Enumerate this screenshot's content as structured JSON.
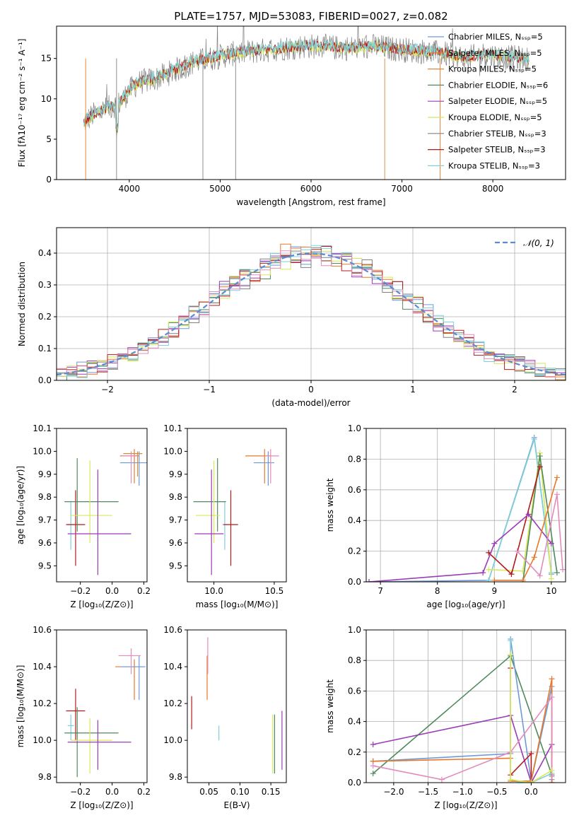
{
  "colors": {
    "chabrier_miles": "#6d9ad6",
    "salpeter_miles": "#e9782a",
    "kroupa_miles": "#d98b3a",
    "chabrier_elodie": "#4f8a5c",
    "salpeter_elodie": "#9b3bb5",
    "kroupa_elodie": "#d8e85a",
    "chabrier_stelib": "#808080",
    "salpeter_stelib": "#b31b1b",
    "kroupa_stelib": "#7fd1d8",
    "pink": "#e38bbd",
    "normal_curve": "#5b8bd1"
  },
  "chart_data": [
    {
      "id": "spectrum",
      "type": "line",
      "title": "PLATE=1757, MJD=53083, FIBERID=0027, z=0.082",
      "xlabel": "wavelength [Angstrom, rest frame]",
      "ylabel": "Flux [fλ10⁻¹⁷ erg cm⁻² s⁻¹ A⁻¹]",
      "xlim": [
        3200,
        8800
      ],
      "ylim": [
        0,
        19
      ],
      "xticks": [
        4000,
        5000,
        6000,
        7000,
        8000
      ],
      "yticks": [
        0,
        5,
        10,
        15
      ],
      "grid": false,
      "legend_position": "top-right",
      "legend": [
        "Chabrier MILES, Nₛₛₚ=5",
        "Salpeter MILES, Nₛₛₚ=5",
        "Kroupa MILES, Nₛₛₚ=5",
        "Chabrier ELODIE, Nₛₛₚ=6",
        "Salpeter ELODIE, Nₛₛₚ=5",
        "Kroupa ELODIE, Nₛₛₚ=5",
        "Chabrier STELIB, Nₛₛₚ=3",
        "Salpeter STELIB, Nₛₛₚ=3",
        "Kroupa STELIB, Nₛₛₚ=3"
      ],
      "continuum": {
        "x": [
          3500,
          3600,
          3700,
          3800,
          3900,
          4000,
          4100,
          4300,
          4500,
          4700,
          4900,
          5100,
          5300,
          5500,
          5700,
          5900,
          6100,
          6300,
          6500,
          6700,
          6900,
          7100,
          7300,
          7500,
          7700,
          7900,
          8100,
          8300,
          8400
        ],
        "y": [
          7.0,
          8.0,
          8.5,
          9.0,
          9.5,
          11.0,
          12.0,
          12.5,
          13.5,
          14.5,
          15.0,
          15.5,
          15.8,
          16.0,
          16.3,
          16.5,
          16.5,
          16.3,
          16.3,
          16.5,
          16.2,
          16.0,
          15.8,
          15.5,
          15.0,
          15.5,
          15.2,
          15.0,
          14.8
        ]
      }
    },
    {
      "id": "residuals",
      "type": "line",
      "xlabel": "(data-model)/error",
      "ylabel": "Normed distribution",
      "xlim": [
        -2.5,
        2.5
      ],
      "ylim": [
        0,
        0.48
      ],
      "xticks": [
        -2,
        -1,
        0,
        1,
        2
      ],
      "yticks": [
        0.0,
        0.1,
        0.2,
        0.3,
        0.4
      ],
      "grid": true,
      "legend_position": "top-right",
      "legend": [
        "𝒩(0, 1)"
      ]
    },
    {
      "id": "age_vs_Z",
      "type": "scatter",
      "xlabel": "Z [log₁₀(Z/Z⊙)]",
      "ylabel": "age  [log₁₀(age/yr)]",
      "xlim": [
        -0.35,
        0.22
      ],
      "ylim": [
        9.43,
        10.1
      ],
      "xticks": [
        -0.2,
        0.0,
        0.2
      ],
      "yticks": [
        9.5,
        9.6,
        9.7,
        9.8,
        9.9,
        10.0,
        10.1
      ],
      "points": [
        {
          "x": 0.14,
          "y": 9.98,
          "xerr": [
            0.09,
            0.03
          ],
          "yerr": [
            0.12,
            0.03
          ],
          "color": "salpeter_miles"
        },
        {
          "x": 0.17,
          "y": 9.95,
          "xerr": [
            0.12,
            0.05
          ],
          "yerr": [
            0.1,
            0.05
          ],
          "color": "chabrier_miles"
        },
        {
          "x": 0.16,
          "y": 9.99,
          "xerr": [
            0.09,
            0.03
          ],
          "yerr": [
            0.1,
            0.01
          ],
          "color": "kroupa_miles"
        },
        {
          "x": 0.12,
          "y": 9.98,
          "xerr": [
            0.06,
            0.04
          ],
          "yerr": [
            0.12,
            0.02
          ],
          "color": "pink"
        },
        {
          "x": -0.26,
          "y": 9.68,
          "xerr": [
            0.02,
            0.02
          ],
          "yerr": [
            0.11,
            0.1
          ],
          "color": "kroupa_stelib"
        },
        {
          "x": -0.23,
          "y": 9.68,
          "xerr": [
            0.06,
            0.06
          ],
          "yerr": [
            0.18,
            0.15
          ],
          "color": "salpeter_stelib"
        },
        {
          "x": -0.22,
          "y": 9.78,
          "xerr": [
            0.08,
            0.26
          ],
          "yerr": [
            0.13,
            0.19
          ],
          "color": "chabrier_elodie"
        },
        {
          "x": -0.14,
          "y": 9.72,
          "xerr": [
            0.12,
            0.14
          ],
          "yerr": [
            0.12,
            0.24
          ],
          "color": "kroupa_elodie"
        },
        {
          "x": -0.09,
          "y": 9.64,
          "xerr": [
            0.19,
            0.21
          ],
          "yerr": [
            0.18,
            0.28
          ],
          "color": "salpeter_elodie"
        }
      ]
    },
    {
      "id": "age_vs_mass",
      "type": "scatter",
      "xlabel": "mass [log₁₀(M/M⊙)]",
      "ylabel": "",
      "xlim": [
        9.78,
        10.6
      ],
      "ylim": [
        9.43,
        10.1
      ],
      "xticks": [
        10.0,
        10.5
      ],
      "yticks": [
        9.5,
        9.6,
        9.7,
        9.8,
        9.9,
        10.0,
        10.1
      ],
      "points": [
        {
          "x": 10.42,
          "y": 9.98,
          "xerr": [
            0.16,
            0.05
          ],
          "yerr": [
            0.12,
            0.03
          ],
          "color": "salpeter_miles"
        },
        {
          "x": 10.45,
          "y": 9.95,
          "xerr": [
            0.12,
            0.05
          ],
          "yerr": [
            0.1,
            0.05
          ],
          "color": "chabrier_miles"
        },
        {
          "x": 10.47,
          "y": 9.98,
          "xerr": [
            0.05,
            0.07
          ],
          "yerr": [
            0.12,
            0.03
          ],
          "color": "pink"
        },
        {
          "x": 10.09,
          "y": 9.68,
          "xerr": [
            0.02,
            0.02
          ],
          "yerr": [
            0.11,
            0.1
          ],
          "color": "kroupa_stelib"
        },
        {
          "x": 10.14,
          "y": 9.68,
          "xerr": [
            0.06,
            0.06
          ],
          "yerr": [
            0.18,
            0.15
          ],
          "color": "salpeter_stelib"
        },
        {
          "x": 10.03,
          "y": 9.78,
          "xerr": [
            0.2,
            0.07
          ],
          "yerr": [
            0.13,
            0.19
          ],
          "color": "chabrier_elodie"
        },
        {
          "x": 10.0,
          "y": 9.72,
          "xerr": [
            0.15,
            0.05
          ],
          "yerr": [
            0.12,
            0.24
          ],
          "color": "kroupa_elodie"
        },
        {
          "x": 9.98,
          "y": 9.64,
          "xerr": [
            0.14,
            0.1
          ],
          "yerr": [
            0.18,
            0.28
          ],
          "color": "salpeter_elodie"
        }
      ]
    },
    {
      "id": "mass_weight_vs_age",
      "type": "line",
      "xlabel": "age  [log₁₀(age/yr)]",
      "ylabel": "mass weight",
      "xlim": [
        6.75,
        10.25
      ],
      "ylim": [
        0,
        1.0
      ],
      "xticks": [
        7,
        8,
        9,
        10
      ],
      "yticks": [
        0.0,
        0.2,
        0.4,
        0.6,
        0.8,
        1.0
      ],
      "grid": true,
      "series": [
        {
          "color": "chabrier_miles",
          "x": [
            6.8,
            8.9,
            9.7,
            10.0
          ],
          "y": [
            0.0,
            0.01,
            0.94,
            0.05
          ]
        },
        {
          "color": "kroupa_stelib",
          "x": [
            8.9,
            9.7,
            10.0
          ],
          "y": [
            0.01,
            0.93,
            0.06
          ]
        },
        {
          "color": "kroupa_elodie",
          "x": [
            8.9,
            9.5,
            9.8,
            10.0
          ],
          "y": [
            0.08,
            0.07,
            0.84,
            0.02
          ]
        },
        {
          "color": "chabrier_elodie",
          "x": [
            9.5,
            9.8,
            10.1
          ],
          "y": [
            0.0,
            0.82,
            0.06
          ]
        },
        {
          "color": "salpeter_stelib",
          "x": [
            8.9,
            9.3,
            9.8
          ],
          "y": [
            0.19,
            0.05,
            0.75
          ]
        },
        {
          "color": "salpeter_elodie",
          "x": [
            6.8,
            8.8,
            9.0,
            9.6,
            10.0
          ],
          "y": [
            0.0,
            0.06,
            0.25,
            0.44,
            0.25
          ]
        },
        {
          "color": "salpeter_miles",
          "x": [
            9.0,
            9.5,
            9.7,
            10.1
          ],
          "y": [
            0.01,
            0.01,
            0.16,
            0.68
          ]
        },
        {
          "color": "pink",
          "x": [
            9.4,
            9.8,
            10.1,
            10.2
          ],
          "y": [
            0.2,
            0.04,
            0.57,
            0.08
          ]
        }
      ]
    },
    {
      "id": "mass_vs_Z",
      "type": "scatter",
      "xlabel": "Z [log₁₀(Z/Z⊙)]",
      "ylabel": "mass [log₁₀(M/M⊙)]",
      "xlim": [
        -0.35,
        0.22
      ],
      "ylim": [
        9.77,
        10.6
      ],
      "xticks": [
        -0.2,
        0.0,
        0.2
      ],
      "yticks": [
        9.8,
        10.0,
        10.2,
        10.4,
        10.6
      ],
      "points": [
        {
          "x": 0.14,
          "y": 10.4,
          "xerr": [
            0.12,
            0.06
          ],
          "yerr": [
            0.18,
            0.04
          ],
          "color": "salpeter_miles"
        },
        {
          "x": 0.17,
          "y": 10.4,
          "xerr": [
            0.12,
            0.04
          ],
          "yerr": [
            0.18,
            0.06
          ],
          "color": "chabrier_miles"
        },
        {
          "x": 0.12,
          "y": 10.46,
          "xerr": [
            0.08,
            0.06
          ],
          "yerr": [
            0.1,
            0.04
          ],
          "color": "pink"
        },
        {
          "x": -0.26,
          "y": 10.08,
          "xerr": [
            0.02,
            0.02
          ],
          "yerr": [
            0.08,
            0.06
          ],
          "color": "kroupa_stelib"
        },
        {
          "x": -0.23,
          "y": 10.16,
          "xerr": [
            0.06,
            0.06
          ],
          "yerr": [
            0.16,
            0.12
          ],
          "color": "salpeter_stelib"
        },
        {
          "x": -0.22,
          "y": 10.04,
          "xerr": [
            0.08,
            0.26
          ],
          "yerr": [
            0.24,
            0.14
          ],
          "color": "chabrier_elodie"
        },
        {
          "x": -0.14,
          "y": 10.0,
          "xerr": [
            0.12,
            0.14
          ],
          "yerr": [
            0.18,
            0.12
          ],
          "color": "kroupa_elodie"
        },
        {
          "x": -0.09,
          "y": 9.99,
          "xerr": [
            0.19,
            0.21
          ],
          "yerr": [
            0.15,
            0.12
          ],
          "color": "salpeter_elodie"
        }
      ]
    },
    {
      "id": "mass_vs_ebv",
      "type": "scatter",
      "xlabel": "E(B-V)",
      "ylabel": "",
      "xlim": [
        0.015,
        0.175
      ],
      "ylim": [
        9.77,
        10.6
      ],
      "xticks": [
        0.05,
        0.1,
        0.15
      ],
      "yticks": [
        9.8,
        10.0,
        10.2,
        10.4,
        10.6
      ],
      "points": [
        {
          "x": 0.022,
          "y": 10.15,
          "yerr": [
            0.09,
            0.09
          ],
          "color": "salpeter_stelib"
        },
        {
          "x": 0.047,
          "y": 10.34,
          "yerr": [
            0.12,
            0.12
          ],
          "color": "salpeter_miles"
        },
        {
          "x": 0.048,
          "y": 10.46,
          "yerr": [
            0.1,
            0.1
          ],
          "color": "pink"
        },
        {
          "x": 0.066,
          "y": 10.04,
          "yerr": [
            0.04,
            0.04
          ],
          "color": "kroupa_stelib"
        },
        {
          "x": 0.153,
          "y": 9.98,
          "yerr": [
            0.16,
            0.16
          ],
          "color": "kroupa_elodie"
        },
        {
          "x": 0.156,
          "y": 9.98,
          "yerr": [
            0.16,
            0.16
          ],
          "color": "chabrier_elodie"
        },
        {
          "x": 0.168,
          "y": 10.0,
          "yerr": [
            0.16,
            0.16
          ],
          "color": "salpeter_elodie"
        }
      ]
    },
    {
      "id": "mass_weight_vs_Z",
      "type": "line",
      "xlabel": "Z [log₁₀(Z/Z⊙)]",
      "ylabel": "mass weight",
      "xlim": [
        -2.4,
        0.5
      ],
      "ylim": [
        0,
        1.0
      ],
      "xticks": [
        -2.0,
        -1.5,
        -1.0,
        -0.5,
        0.0
      ],
      "yticks": [
        0.0,
        0.2,
        0.4,
        0.6,
        0.8,
        1.0
      ],
      "grid": true,
      "series": [
        {
          "color": "chabrier_elodie",
          "x": [
            -2.3,
            -0.3,
            0.3
          ],
          "y": [
            0.06,
            0.83,
            0.05
          ]
        },
        {
          "color": "salpeter_elodie",
          "x": [
            -2.3,
            -0.3,
            0.0,
            0.3,
            0.3
          ],
          "y": [
            0.25,
            0.44,
            0.0,
            0.25,
            0.0
          ]
        },
        {
          "color": "chabrier_miles",
          "x": [
            -2.3,
            -0.3,
            -0.3,
            0.0,
            0.3,
            0.3
          ],
          "y": [
            0.14,
            0.19,
            0.94,
            0.01,
            0.63,
            0.02
          ]
        },
        {
          "color": "kroupa_stelib",
          "x": [
            -0.3,
            -0.3,
            0.0,
            0.3
          ],
          "y": [
            0.93,
            0.01,
            0.0,
            0.06
          ]
        },
        {
          "color": "salpeter_stelib",
          "x": [
            -0.3,
            -0.3,
            0.0,
            0.0
          ],
          "y": [
            0.75,
            0.05,
            0.19,
            0.0
          ]
        },
        {
          "color": "salpeter_miles",
          "x": [
            -2.3,
            -0.3,
            -0.3,
            0.0,
            0.3,
            0.3
          ],
          "y": [
            0.14,
            0.16,
            0.01,
            0.01,
            0.68,
            0.0
          ]
        },
        {
          "color": "pink",
          "x": [
            -2.3,
            -1.3,
            -0.3,
            0.3,
            0.3
          ],
          "y": [
            0.11,
            0.02,
            0.2,
            0.56,
            0.04
          ]
        },
        {
          "color": "kroupa_elodie",
          "x": [
            -0.3,
            -0.3,
            0.0,
            0.3
          ],
          "y": [
            0.84,
            0.02,
            0.0,
            0.08
          ]
        }
      ]
    }
  ]
}
